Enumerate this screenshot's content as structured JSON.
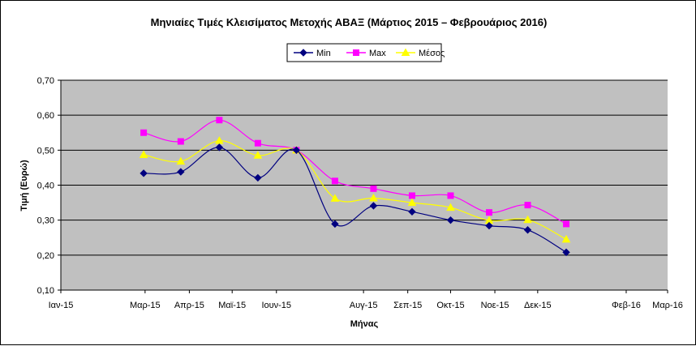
{
  "chart_data": {
    "type": "line",
    "title": "Μηνιαίες Τιμές Κλεισίματος Μετοχής ΑΒΑΞ (Μάρτιος 2015 – Φεβρουάριος 2016)",
    "xlabel": "Μήνας",
    "ylabel": "Τιμή (Ευρώ)",
    "ylim": [
      0.1,
      0.7
    ],
    "yticks": [
      "0,10",
      "0,20",
      "0,30",
      "0,40",
      "0,50",
      "0,60",
      "0,70"
    ],
    "ytick_values": [
      0.1,
      0.2,
      0.3,
      0.4,
      0.5,
      0.6,
      0.7
    ],
    "xticks": [
      "Ιαν-15",
      "Μαρ-15",
      "Απρ-15",
      "Μαϊ-15",
      "Ιουν-15",
      "Αυγ-15",
      "Σεπ-15",
      "Οκτ-15",
      "Νοε-15",
      "Δεκ-15",
      "Φεβ-16",
      "Μαρ-16"
    ],
    "xtick_dates": [
      "2015-01-01",
      "2015-03-01",
      "2015-04-01",
      "2015-05-01",
      "2015-06-01",
      "2015-08-01",
      "2015-09-01",
      "2015-10-01",
      "2015-11-01",
      "2015-12-01",
      "2016-02-01",
      "2016-03-01"
    ],
    "x": [
      "2015-02-28",
      "2015-03-26",
      "2015-04-22",
      "2015-05-19",
      "2015-06-15",
      "2015-07-12",
      "2015-08-08",
      "2015-09-04",
      "2015-10-01",
      "2015-10-28",
      "2015-11-24",
      "2015-12-21"
    ],
    "grid": true,
    "legend_position": "top-center",
    "series": [
      {
        "name": "Min",
        "color": "#000080",
        "marker": "diamond",
        "values": [
          0.434,
          0.438,
          0.508,
          0.421,
          0.5,
          0.289,
          0.341,
          0.324,
          0.3,
          0.284,
          0.272,
          0.208
        ]
      },
      {
        "name": "Max",
        "color": "#ff00ff",
        "marker": "square",
        "values": [
          0.55,
          0.525,
          0.586,
          0.52,
          0.5,
          0.412,
          0.39,
          0.37,
          0.37,
          0.322,
          0.343,
          0.289
        ]
      },
      {
        "name": "Μέσος",
        "color": "#ffff00",
        "marker": "triangle",
        "values": [
          0.487,
          0.468,
          0.527,
          0.485,
          0.5,
          0.362,
          0.363,
          0.35,
          0.336,
          0.299,
          0.301,
          0.245
        ]
      }
    ],
    "colors": {
      "plot_background": "#c0c0c0",
      "gridline": "#000000"
    }
  }
}
